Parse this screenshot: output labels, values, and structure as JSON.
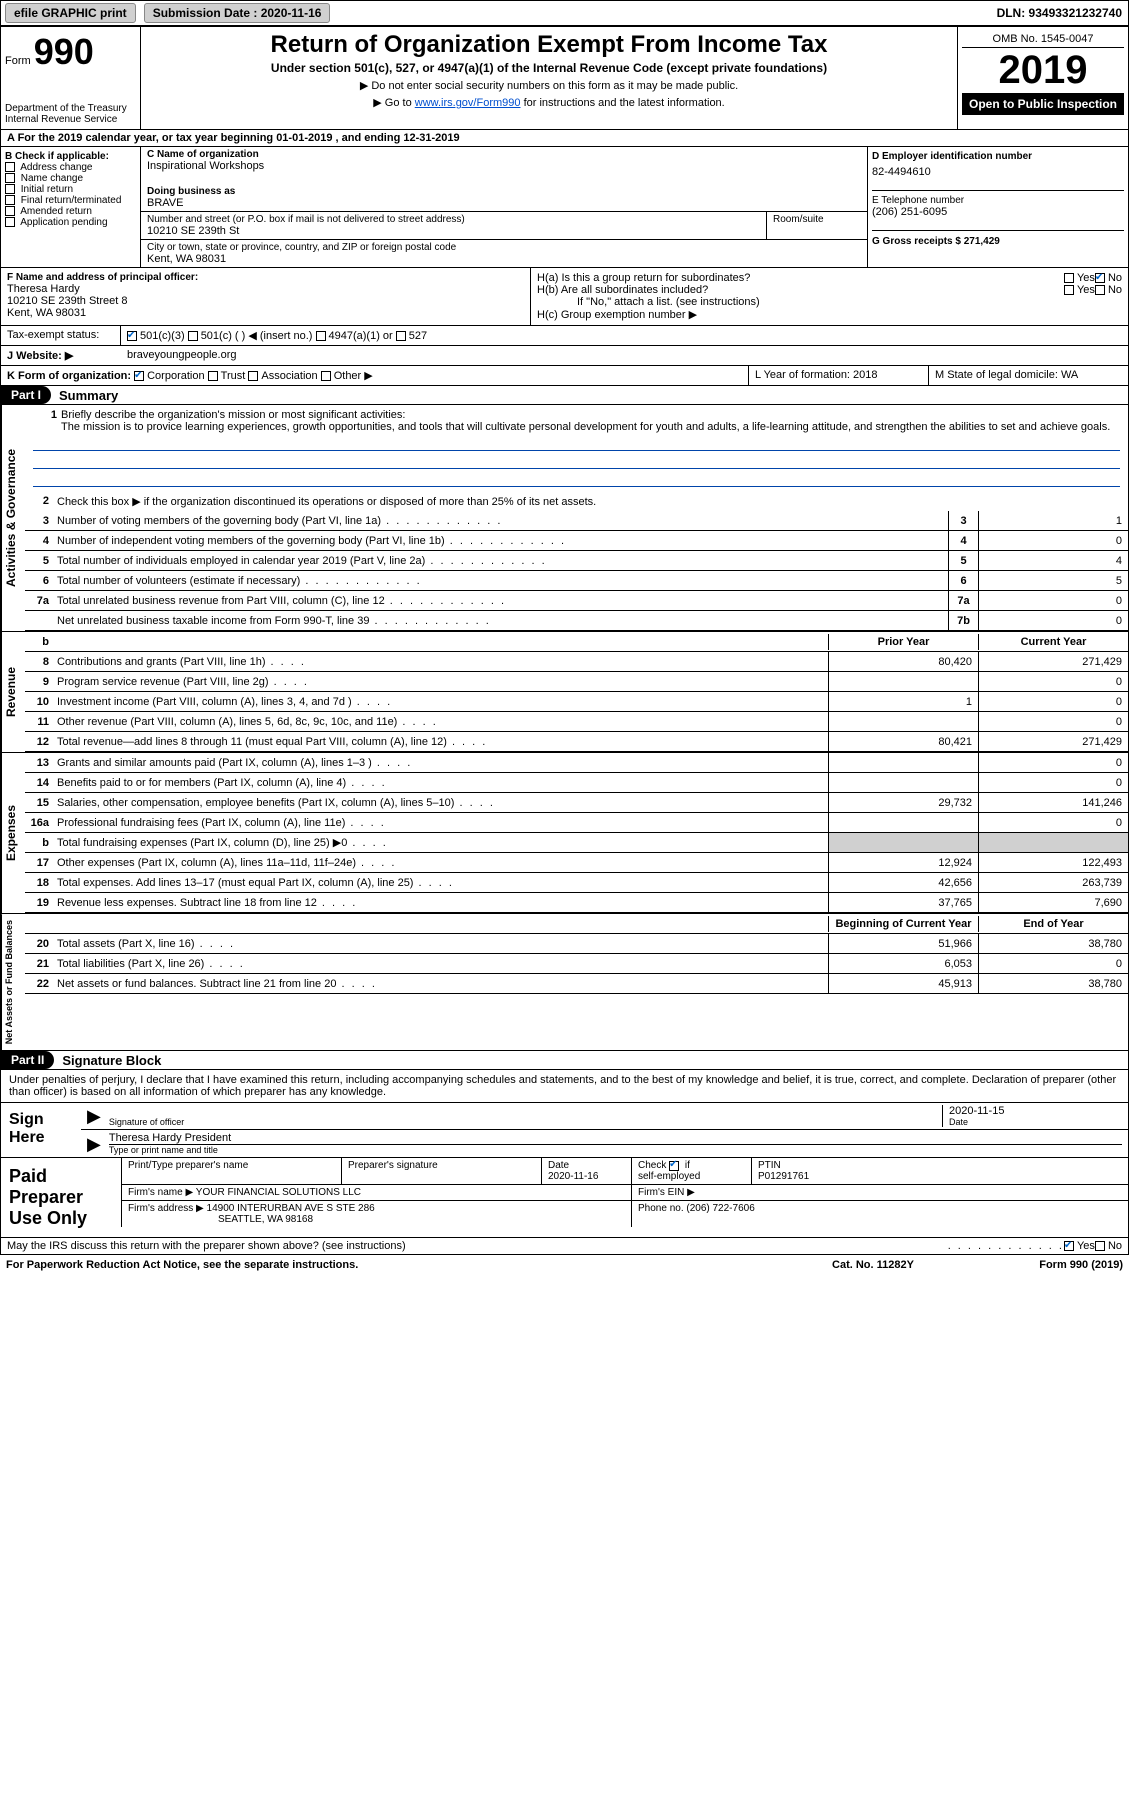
{
  "topbar": {
    "efile": "efile GRAPHIC print",
    "submission_label": "Submission Date : 2020-11-16",
    "dln": "DLN: 93493321232740"
  },
  "header": {
    "form_label": "Form",
    "form_number": "990",
    "dept": "Department of the Treasury\nInternal Revenue Service",
    "title": "Return of Organization Exempt From Income Tax",
    "subtitle": "Under section 501(c), 527, or 4947(a)(1) of the Internal Revenue Code (except private foundations)",
    "note1": "▶ Do not enter social security numbers on this form as it may be made public.",
    "note2_prefix": "▶ Go to ",
    "note2_link": "www.irs.gov/Form990",
    "note2_suffix": " for instructions and the latest information.",
    "omb": "OMB No. 1545-0047",
    "year": "2019",
    "inspection": "Open to Public Inspection"
  },
  "row_a": "A   For the 2019 calendar year, or tax year beginning 01-01-2019    , and ending 12-31-2019",
  "section_b": {
    "label": "B Check if applicable:",
    "opts": [
      "Address change",
      "Name change",
      "Initial return",
      "Final return/terminated",
      "Amended return",
      "Application pending"
    ]
  },
  "section_c": {
    "name_label": "C Name of organization",
    "name": "Inspirational Workshops",
    "dba_label": "Doing business as",
    "dba": "BRAVE",
    "addr_label": "Number and street (or P.O. box if mail is not delivered to street address)",
    "room_label": "Room/suite",
    "addr": "10210 SE 239th St",
    "city_label": "City or town, state or province, country, and ZIP or foreign postal code",
    "city": "Kent, WA  98031"
  },
  "section_d": {
    "label": "D Employer identification number",
    "val": "82-4494610"
  },
  "section_e": {
    "label": "E Telephone number",
    "val": "(206) 251-6095"
  },
  "section_g": {
    "label": "G Gross receipts $ 271,429"
  },
  "section_f": {
    "label": "F  Name and address of principal officer:",
    "name": "Theresa Hardy",
    "addr": "10210 SE 239th Street 8",
    "city": "Kent, WA  98031"
  },
  "section_h": {
    "a": "H(a)  Is this a group return for subordinates?",
    "b": "H(b)  Are all subordinates included?",
    "b_note": "If \"No,\" attach a list. (see instructions)",
    "c": "H(c)  Group exemption number ▶"
  },
  "tax_status": {
    "label": "Tax-exempt status:",
    "o1": "501(c)(3)",
    "o2": "501(c) (  ) ◀ (insert no.)",
    "o3": "4947(a)(1) or",
    "o4": "527"
  },
  "row_j": {
    "label": "J    Website: ▶",
    "val": "braveyoungpeople.org"
  },
  "row_k": {
    "label": "K Form of organization:",
    "o1": "Corporation",
    "o2": "Trust",
    "o3": "Association",
    "o4": "Other ▶",
    "l": "L Year of formation: 2018",
    "m": "M State of legal domicile: WA"
  },
  "part1": {
    "header": "Part I",
    "title": "Summary"
  },
  "summary": {
    "q1": "Briefly describe the organization's mission or most significant activities:",
    "mission": "The mission is to provice learning experiences, growth opportunities, and tools that will cultivate personal development for youth and adults, a life-learning attitude, and strengthen the abilities to set and achieve goals.",
    "q2": "Check this box ▶     if the organization discontinued its operations or disposed of more than 25% of its net assets.",
    "rows_ag": [
      {
        "n": "3",
        "l": "Number of voting members of the governing body (Part VI, line 1a)",
        "box": "3",
        "v": "1"
      },
      {
        "n": "4",
        "l": "Number of independent voting members of the governing body (Part VI, line 1b)",
        "box": "4",
        "v": "0"
      },
      {
        "n": "5",
        "l": "Total number of individuals employed in calendar year 2019 (Part V, line 2a)",
        "box": "5",
        "v": "4"
      },
      {
        "n": "6",
        "l": "Total number of volunteers (estimate if necessary)",
        "box": "6",
        "v": "5"
      },
      {
        "n": "7a",
        "l": "Total unrelated business revenue from Part VIII, column (C), line 12",
        "box": "7a",
        "v": "0"
      },
      {
        "n": "",
        "l": "Net unrelated business taxable income from Form 990-T, line 39",
        "box": "7b",
        "v": "0"
      }
    ],
    "col_prior": "Prior Year",
    "col_current": "Current Year",
    "rows_rev": [
      {
        "n": "8",
        "l": "Contributions and grants (Part VIII, line 1h)",
        "p": "80,420",
        "c": "271,429"
      },
      {
        "n": "9",
        "l": "Program service revenue (Part VIII, line 2g)",
        "p": "",
        "c": "0"
      },
      {
        "n": "10",
        "l": "Investment income (Part VIII, column (A), lines 3, 4, and 7d )",
        "p": "1",
        "c": "0"
      },
      {
        "n": "11",
        "l": "Other revenue (Part VIII, column (A), lines 5, 6d, 8c, 9c, 10c, and 11e)",
        "p": "",
        "c": "0"
      },
      {
        "n": "12",
        "l": "Total revenue—add lines 8 through 11 (must equal Part VIII, column (A), line 12)",
        "p": "80,421",
        "c": "271,429"
      }
    ],
    "rows_exp": [
      {
        "n": "13",
        "l": "Grants and similar amounts paid (Part IX, column (A), lines 1–3 )",
        "p": "",
        "c": "0"
      },
      {
        "n": "14",
        "l": "Benefits paid to or for members (Part IX, column (A), line 4)",
        "p": "",
        "c": "0"
      },
      {
        "n": "15",
        "l": "Salaries, other compensation, employee benefits (Part IX, column (A), lines 5–10)",
        "p": "29,732",
        "c": "141,246"
      },
      {
        "n": "16a",
        "l": "Professional fundraising fees (Part IX, column (A), line 11e)",
        "p": "",
        "c": "0"
      },
      {
        "n": "b",
        "l": "Total fundraising expenses (Part IX, column (D), line 25) ▶0",
        "p": "SHADE",
        "c": "SHADE"
      },
      {
        "n": "17",
        "l": "Other expenses (Part IX, column (A), lines 11a–11d, 11f–24e)",
        "p": "12,924",
        "c": "122,493"
      },
      {
        "n": "18",
        "l": "Total expenses. Add lines 13–17 (must equal Part IX, column (A), line 25)",
        "p": "42,656",
        "c": "263,739"
      },
      {
        "n": "19",
        "l": "Revenue less expenses. Subtract line 18 from line 12",
        "p": "37,765",
        "c": "7,690"
      }
    ],
    "col_begin": "Beginning of Current Year",
    "col_end": "End of Year",
    "rows_na": [
      {
        "n": "20",
        "l": "Total assets (Part X, line 16)",
        "p": "51,966",
        "c": "38,780"
      },
      {
        "n": "21",
        "l": "Total liabilities (Part X, line 26)",
        "p": "6,053",
        "c": "0"
      },
      {
        "n": "22",
        "l": "Net assets or fund balances. Subtract line 21 from line 20",
        "p": "45,913",
        "c": "38,780"
      }
    ]
  },
  "part2": {
    "header": "Part II",
    "title": "Signature Block"
  },
  "sig": {
    "declaration": "Under penalties of perjury, I declare that I have examined this return, including accompanying schedules and statements, and to the best of my knowledge and belief, it is true, correct, and complete. Declaration of preparer (other than officer) is based on all information of which preparer has any knowledge.",
    "sign_here": "Sign Here",
    "sig_officer": "Signature of officer",
    "date_label": "Date",
    "date_val": "2020-11-15",
    "name_title": "Theresa Hardy  President",
    "name_caption": "Type or print name and title"
  },
  "prep": {
    "label": "Paid Preparer Use Only",
    "h1": "Print/Type preparer's name",
    "h2": "Preparer's signature",
    "h3": "Date",
    "h3v": "2020-11-16",
    "h4": "Check       if self-employed",
    "h5": "PTIN",
    "h5v": "P01291761",
    "firm_label": "Firm's name    ▶",
    "firm": "YOUR FINANCIAL SOLUTIONS LLC",
    "ein_label": "Firm's EIN ▶",
    "addr_label": "Firm's address ▶",
    "addr": "14900 INTERURBAN AVE S STE 286",
    "city": "SEATTLE, WA  98168",
    "phone_label": "Phone no. (206) 722-7606"
  },
  "footer": {
    "discuss": "May the IRS discuss this return with the preparer shown above? (see instructions)",
    "yes": "Yes",
    "no": "No",
    "paperwork": "For Paperwork Reduction Act Notice, see the separate instructions.",
    "cat": "Cat. No. 11282Y",
    "form": "Form 990 (2019)"
  },
  "vtabs": {
    "ag": "Activities & Governance",
    "rev": "Revenue",
    "exp": "Expenses",
    "na": "Net Assets or Fund Balances"
  }
}
